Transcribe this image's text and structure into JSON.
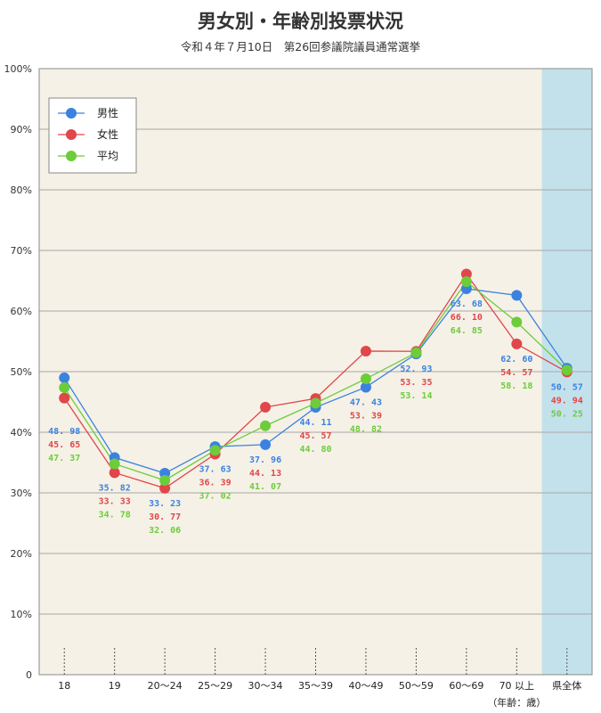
{
  "chart_data": {
    "type": "line",
    "title": "男女別・年齢別投票状況",
    "subtitle": "令和４年７月10日　第26回参議院議員通常選挙",
    "categories": [
      "18",
      "19",
      "20～24",
      "25～29",
      "30～34",
      "35～39",
      "40～49",
      "50～59",
      "60～69",
      "70 以上",
      "県全体"
    ],
    "x_unit_label": "（年齢：歳）",
    "yticks": [
      "0",
      "10%",
      "20%",
      "30%",
      "40%",
      "50%",
      "60%",
      "70%",
      "80%",
      "90%",
      "100%"
    ],
    "ylim": [
      0,
      100
    ],
    "grid": true,
    "legend_position": "top-left",
    "highlight_category": "県全体",
    "series": [
      {
        "name": "男性",
        "color": "#3b82e0",
        "values": [
          48.98,
          35.82,
          33.23,
          37.63,
          37.96,
          44.11,
          47.43,
          52.93,
          63.68,
          62.6,
          50.57
        ],
        "labels": [
          "48. 98",
          "35. 82",
          "33. 23",
          "37. 63",
          "37. 96",
          "44. 11",
          "47. 43",
          "52. 93",
          "63. 68",
          "62. 60",
          "50. 57"
        ]
      },
      {
        "name": "女性",
        "color": "#e0464a",
        "values": [
          45.65,
          33.33,
          30.77,
          36.39,
          44.13,
          45.57,
          53.39,
          53.35,
          66.1,
          54.57,
          49.94
        ],
        "labels": [
          "45. 65",
          "33. 33",
          "30. 77",
          "36. 39",
          "44. 13",
          "45. 57",
          "53. 39",
          "53. 35",
          "66. 10",
          "54. 57",
          "49. 94"
        ]
      },
      {
        "name": "平均",
        "color": "#6dcc3a",
        "values": [
          47.37,
          34.78,
          32.06,
          37.02,
          41.07,
          44.8,
          48.82,
          53.14,
          64.85,
          58.18,
          50.25
        ],
        "labels": [
          "47. 37",
          "34. 78",
          "32. 06",
          "37. 02",
          "41. 07",
          "44. 80",
          "48. 82",
          "53. 14",
          "64. 85",
          "58. 18",
          "50. 25"
        ]
      }
    ]
  }
}
